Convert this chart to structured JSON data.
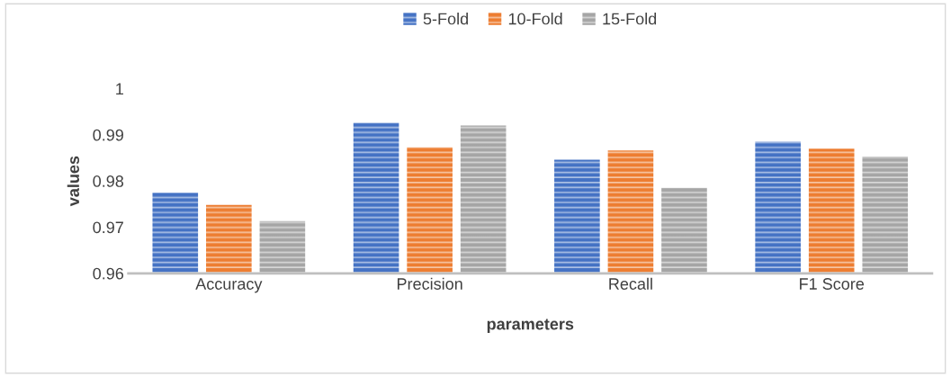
{
  "chart_data": {
    "type": "bar",
    "xlabel": "parameters",
    "ylabel": "values",
    "categories": [
      "Accuracy",
      "Precision",
      "Recall",
      "F1 Score"
    ],
    "series": [
      {
        "name": "5-Fold",
        "color": "#4472c4",
        "values": [
          0.9775,
          0.9926,
          0.9846,
          0.9885
        ]
      },
      {
        "name": "10-Fold",
        "color": "#ed7d31",
        "values": [
          0.9748,
          0.9873,
          0.9866,
          0.987
        ]
      },
      {
        "name": "15-Fold",
        "color": "#a5a5a5",
        "values": [
          0.9713,
          0.992,
          0.9785,
          0.9853
        ]
      }
    ],
    "ylim": [
      0.96,
      1
    ],
    "yticks": [
      0.96,
      0.97,
      0.98,
      0.99,
      1
    ],
    "grid": false,
    "legend": "top"
  }
}
